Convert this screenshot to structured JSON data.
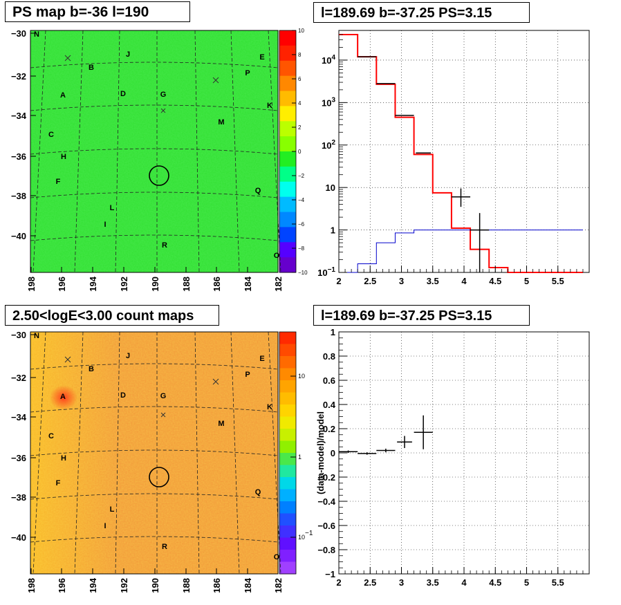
{
  "chart_data": [
    {
      "type": "heatmap",
      "title": "PS map b=-36 l=190",
      "x_ticks": [
        "198",
        "196",
        "194",
        "192",
        "190",
        "188",
        "186",
        "184",
        "182"
      ],
      "y_ticks": [
        "-30",
        "-32",
        "-34",
        "-36",
        "-38",
        "-40"
      ],
      "colorbar_ticks": [
        "10",
        "8",
        "6",
        "4",
        "2",
        "0",
        "−2",
        "−4",
        "−6",
        "−8",
        "−10"
      ],
      "source_labels": [
        "N",
        "J",
        "E",
        "B",
        "P",
        "A",
        "D",
        "G",
        "K",
        "C",
        "M",
        "H",
        "F",
        "Q",
        "L",
        "I",
        "R",
        "O"
      ],
      "colorbar_colors": [
        "#6600cc",
        "#5500ff",
        "#0044ff",
        "#0088ff",
        "#00bbff",
        "#00ffee",
        "#00ff88",
        "#22ee22",
        "#88ff00",
        "#bbff00",
        "#ffee00",
        "#ffbb00",
        "#ff8800",
        "#ff5500",
        "#ff2200",
        "#ff0000"
      ],
      "map_color": "#33e033"
    },
    {
      "type": "line",
      "title": "l=189.69 b=-37.25 PS=3.15",
      "y_scale": "log",
      "xlim": [
        2,
        6
      ],
      "ylim": [
        0.1,
        50000
      ],
      "x_ticks": [
        "2",
        "2.5",
        "3",
        "3.5",
        "4",
        "4.5",
        "5",
        "5.5"
      ],
      "y_ticks": [
        "10^-1",
        "1",
        "10",
        "10^2",
        "10^3",
        "10^4"
      ],
      "bin_edges": [
        2.0,
        2.3,
        2.6,
        2.9,
        3.2,
        3.5,
        3.8,
        4.1,
        4.4,
        4.7,
        5.0,
        5.3,
        5.6,
        5.9
      ],
      "series": [
        {
          "values": [
            40000,
            12000,
            2700,
            450,
            60,
            7.5,
            1.1,
            0.35,
            0.13,
            0.1,
            0.1,
            0.1,
            0.1
          ],
          "color": "#ff0000"
        },
        {
          "values": [
            0.1,
            0.16,
            0.5,
            0.85,
            1.0,
            1.0,
            1.0,
            1.0,
            1.0,
            1.0,
            1.0,
            1.0,
            1.0
          ],
          "color": "#0000cc"
        }
      ],
      "data_points": [
        {
          "x": 2.45,
          "y": 12000
        },
        {
          "x": 2.75,
          "y": 2800
        },
        {
          "x": 3.05,
          "y": 500,
          "xerr": 0.15
        },
        {
          "x": 3.35,
          "y": 65,
          "xerr": 0.12
        },
        {
          "x": 3.95,
          "y": 6,
          "xerr": 0.15,
          "ylo": 3.5,
          "yhi": 9.5
        },
        {
          "x": 4.25,
          "y": 1,
          "xerr": 0.15,
          "ylo": 0.1,
          "yhi": 2.5
        }
      ]
    },
    {
      "type": "heatmap",
      "title": "2.50<logE<3.00 count maps",
      "x_ticks": [
        "198",
        "196",
        "194",
        "192",
        "190",
        "188",
        "186",
        "184",
        "182"
      ],
      "y_ticks": [
        "-30",
        "-32",
        "-34",
        "-36",
        "-38",
        "-40"
      ],
      "colorbar_ticks": [
        "10",
        "1",
        "10^-1"
      ],
      "source_labels": [
        "N",
        "J",
        "E",
        "B",
        "P",
        "A",
        "D",
        "G",
        "K",
        "C",
        "M",
        "H",
        "F",
        "Q",
        "L",
        "I",
        "R",
        "O"
      ],
      "map_color": "#f29a3a"
    },
    {
      "type": "scatter",
      "title": "l=189.69 b=-37.25 PS=3.15",
      "ylabel": "(data-model)/model",
      "xlim": [
        2,
        6
      ],
      "ylim": [
        -1,
        1
      ],
      "x_ticks": [
        "2",
        "2.5",
        "3",
        "3.5",
        "4",
        "4.5",
        "5",
        "5.5"
      ],
      "y_ticks": [
        "1",
        "0.8",
        "0.6",
        "0.4",
        "0.2",
        "0",
        "−0.2",
        "−0.4",
        "−0.6",
        "−0.8",
        "−1"
      ],
      "points": [
        {
          "x": 2.15,
          "y": 0.01,
          "xerr": 0.15,
          "yerr": 0.01
        },
        {
          "x": 2.45,
          "y": -0.005,
          "xerr": 0.15,
          "yerr": 0.01
        },
        {
          "x": 2.75,
          "y": 0.02,
          "xerr": 0.15,
          "yerr": 0.015
        },
        {
          "x": 3.05,
          "y": 0.09,
          "xerr": 0.12,
          "yerr": 0.05
        },
        {
          "x": 3.35,
          "y": 0.17,
          "xerr": 0.15,
          "yerr": 0.14
        }
      ]
    }
  ]
}
